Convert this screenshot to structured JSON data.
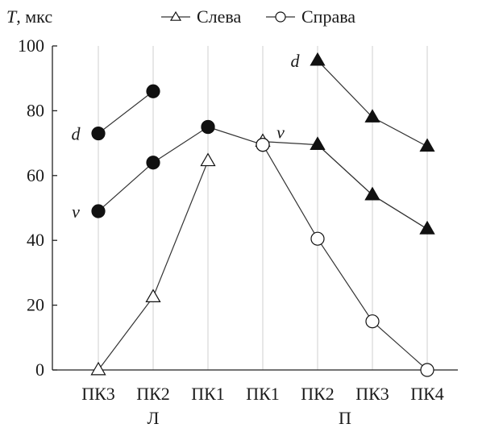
{
  "chart_data": {
    "type": "line",
    "ylabel": "T, мкс",
    "ylabel_italic_part": "T",
    "ylabel_rest": ", мкс",
    "ylim": [
      0,
      100
    ],
    "yticks": [
      0,
      20,
      40,
      60,
      80,
      100
    ],
    "grid": "vertical",
    "legend_position": "top",
    "categories": [
      "ПК3",
      "ПК2",
      "ПК1",
      "ПК1",
      "ПК2",
      "ПК3",
      "ПК4"
    ],
    "groups": [
      {
        "label": "Л",
        "from": 0,
        "to": 2
      },
      {
        "label": "П",
        "from": 3,
        "to": 6
      }
    ],
    "legend": [
      {
        "name": "Слева",
        "marker": "triangle-open"
      },
      {
        "name": "Справа",
        "marker": "circle-open"
      }
    ],
    "series": [
      {
        "name": "Слева",
        "marker": "triangle-open",
        "points": [
          [
            0,
            0
          ],
          [
            1,
            22.5
          ],
          [
            2,
            64.5
          ]
        ]
      },
      {
        "name": "Справа",
        "marker": "circle-open",
        "points": [
          [
            0,
            75
          ],
          [
            1,
            69.5
          ]
        ],
        "x_offset": 2
      },
      {
        "name": "",
        "marker": "circle-filled",
        "points": [
          [
            0,
            73
          ],
          [
            1,
            86
          ]
        ]
      },
      {
        "name": "",
        "marker": "circle-filled",
        "points": [
          [
            0,
            49
          ],
          [
            1,
            64
          ],
          [
            2,
            75
          ]
        ]
      },
      {
        "name": "",
        "marker": "triangle-open",
        "points": [
          [
            3,
            70.5
          ],
          [
            4,
            69.5
          ],
          [
            5,
            54
          ],
          [
            6,
            43.5
          ]
        ]
      },
      {
        "name": "",
        "marker": "triangle-filled",
        "points": [
          [
            4,
            95.5
          ],
          [
            5,
            78
          ],
          [
            6,
            69
          ]
        ]
      },
      {
        "name": "",
        "marker": "triangle-filled",
        "points": [
          [
            4,
            69.5
          ],
          [
            5,
            54
          ],
          [
            6,
            43.5
          ]
        ]
      },
      {
        "name": "",
        "marker": "circle-open",
        "points": [
          [
            3,
            69.5
          ],
          [
            4,
            40.5
          ],
          [
            5,
            15
          ],
          [
            6,
            0
          ]
        ]
      }
    ],
    "annotations": [
      {
        "text": "d",
        "x": 0,
        "y": 73
      },
      {
        "text": "v",
        "x": 0,
        "y": 49
      },
      {
        "text": "d",
        "x": 4,
        "y": 95.5
      },
      {
        "text": "v",
        "x": 3,
        "y": 70.5
      }
    ]
  }
}
